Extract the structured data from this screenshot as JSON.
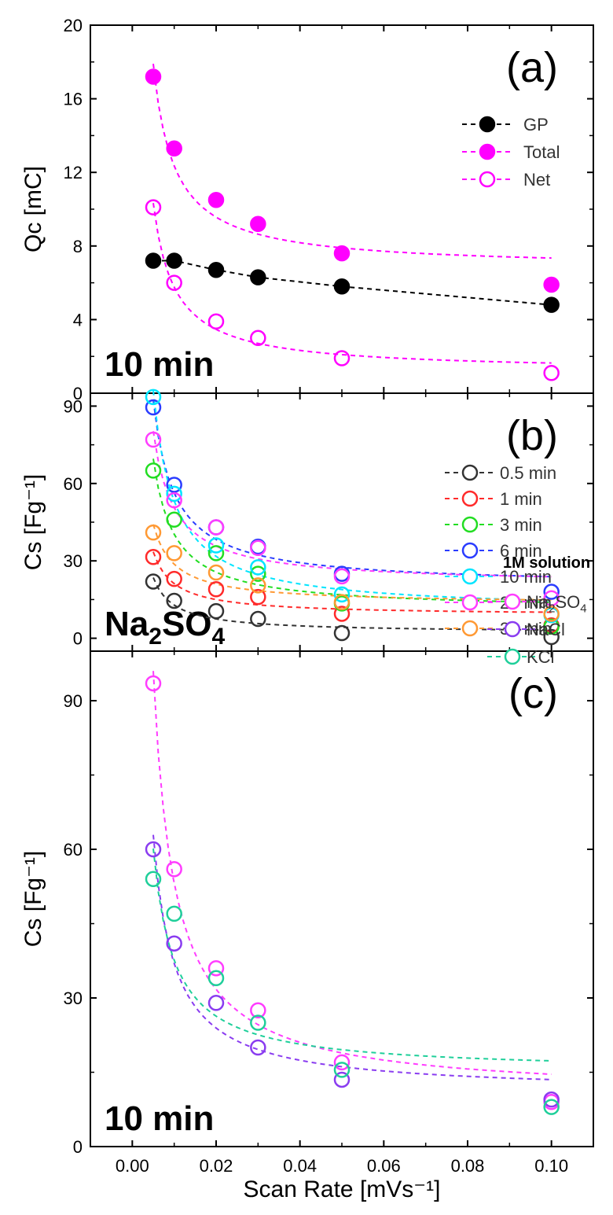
{
  "x_axis": {
    "label": "Scan Rate [mVs⁻¹]",
    "range": [
      -0.01,
      0.11
    ],
    "ticks": [
      0.0,
      0.02,
      0.04,
      0.06,
      0.08,
      0.1
    ],
    "tick_labels": [
      "0.00",
      "0.02",
      "0.04",
      "0.06",
      "0.08",
      "0.10"
    ]
  },
  "chart_data": [
    {
      "type": "scatter",
      "panel_label": "(a)",
      "annotation": "10 min",
      "ylabel": "Qc [mC]",
      "ylim": [
        0,
        20
      ],
      "yticks": [
        0,
        4,
        8,
        12,
        16,
        20
      ],
      "legend_title": "",
      "legend_position": "top-right",
      "x": [
        0.005,
        0.01,
        0.02,
        0.03,
        0.05,
        0.1
      ],
      "series": [
        {
          "name": "GP",
          "color": "#000000",
          "filled": true,
          "values": [
            7.2,
            7.2,
            6.7,
            6.3,
            5.8,
            4.8
          ]
        },
        {
          "name": "Total",
          "color": "#ff00ff",
          "filled": true,
          "values": [
            17.2,
            13.3,
            10.5,
            9.2,
            7.6,
            5.9
          ]
        },
        {
          "name": "Net",
          "color": "#ff00ff",
          "filled": false,
          "values": [
            10.1,
            6.0,
            3.9,
            3.0,
            1.9,
            1.1
          ]
        }
      ]
    },
    {
      "type": "scatter",
      "panel_label": "(b)",
      "annotation": "Na2SO4",
      "ylabel": "Cs [Fg⁻¹]",
      "ylim": [
        -5,
        95
      ],
      "yticks": [
        0,
        30,
        60,
        90
      ],
      "legend_title": "",
      "legend_position": "top-right",
      "x": [
        0.005,
        0.01,
        0.02,
        0.03,
        0.05,
        0.1
      ],
      "series": [
        {
          "name": "0.5 min",
          "color": "#333333",
          "filled": false,
          "values": [
            22,
            14.5,
            10.5,
            7.5,
            2,
            0.5
          ]
        },
        {
          "name": "1 min",
          "color": "#ff2a2a",
          "filled": false,
          "values": [
            31.5,
            23,
            19,
            16,
            9.5,
            5
          ]
        },
        {
          "name": "3 min",
          "color": "#22dd22",
          "filled": false,
          "values": [
            65,
            46,
            33,
            25,
            13.5,
            4.5
          ]
        },
        {
          "name": "6 min",
          "color": "#2a3cff",
          "filled": false,
          "values": [
            89.5,
            59.5,
            43,
            35.5,
            25,
            18
          ]
        },
        {
          "name": "10 min",
          "color": "#00e5ff",
          "filled": false,
          "values": [
            93.5,
            56,
            36,
            27.5,
            17,
            9
          ]
        },
        {
          "name": "20 min",
          "color": "#ff3cff",
          "filled": false,
          "values": [
            77,
            53.5,
            43,
            35,
            24,
            15.5
          ]
        },
        {
          "name": "30 min",
          "color": "#ff9933",
          "filled": false,
          "values": [
            41,
            33,
            25.5,
            20.5,
            14,
            9.5
          ]
        }
      ]
    },
    {
      "type": "scatter",
      "panel_label": "(c)",
      "annotation": "10 min",
      "ylabel": "Cs [Fg⁻¹]",
      "ylim": [
        0,
        100
      ],
      "yticks": [
        0,
        30,
        60,
        90
      ],
      "legend_title": "1M solution",
      "legend_position": "right",
      "x": [
        0.005,
        0.01,
        0.02,
        0.03,
        0.05,
        0.1
      ],
      "series": [
        {
          "name": "Na2SO4",
          "color": "#ff3cff",
          "filled": false,
          "values": [
            93.5,
            56,
            36,
            27.5,
            17,
            9
          ]
        },
        {
          "name": "NaCl",
          "color": "#8a3cf0",
          "filled": false,
          "values": [
            60,
            41,
            29,
            20,
            13.5,
            9.5
          ]
        },
        {
          "name": "KCl",
          "color": "#1fcf9a",
          "filled": false,
          "values": [
            54,
            47,
            34,
            25,
            15.5,
            8
          ]
        }
      ]
    }
  ]
}
